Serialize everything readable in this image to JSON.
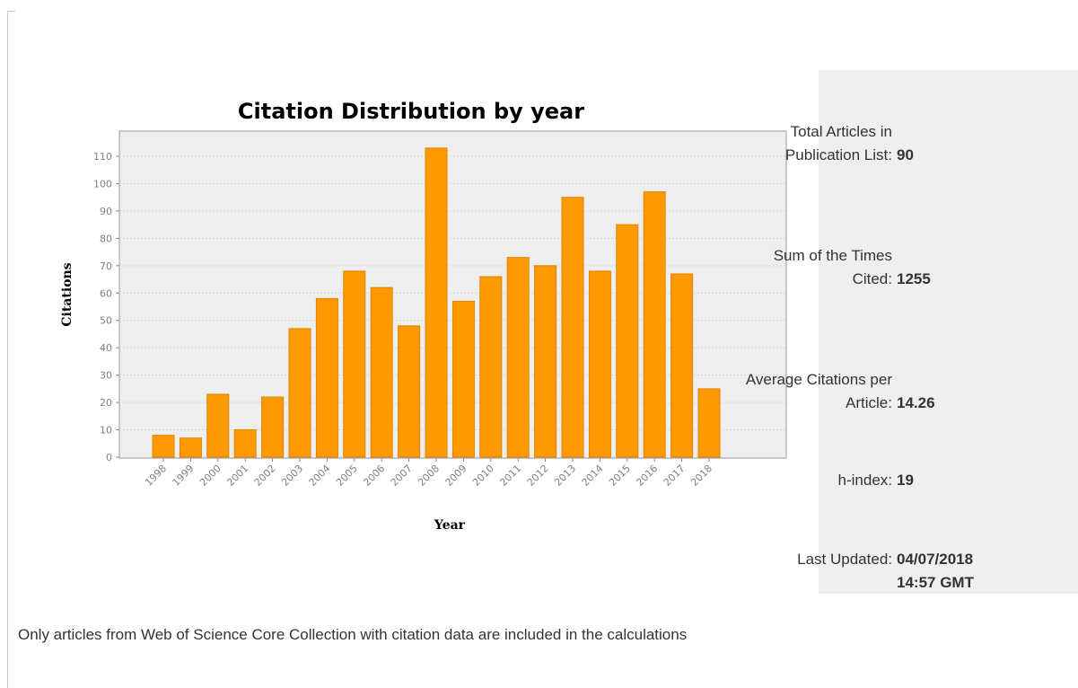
{
  "chart_data": {
    "type": "bar",
    "title": "Citation Distribution by year",
    "xlabel": "Year",
    "ylabel": "Citations",
    "categories": [
      "1998",
      "1999",
      "2000",
      "2001",
      "2002",
      "2003",
      "2004",
      "2005",
      "2006",
      "2007",
      "2008",
      "2009",
      "2010",
      "2011",
      "2012",
      "2013",
      "2014",
      "2015",
      "2016",
      "2017",
      "2018"
    ],
    "values": [
      8,
      7,
      23,
      10,
      22,
      47,
      58,
      68,
      62,
      48,
      113,
      57,
      66,
      73,
      70,
      95,
      68,
      85,
      97,
      67,
      25
    ],
    "ylim": [
      0,
      120
    ],
    "yticks": [
      0,
      10,
      20,
      30,
      40,
      50,
      60,
      70,
      80,
      90,
      100,
      110
    ],
    "grid": true,
    "bar_color": "#ff9900",
    "bar_stroke": "#e08300",
    "plot_background": "#eeeeee"
  },
  "stats": [
    {
      "label": "Total Articles in Publication List:",
      "value": "90"
    },
    {
      "label": "Sum of the Times Cited:",
      "value": "1255"
    },
    {
      "label": "Average Citations per Article:",
      "value": "14.26"
    },
    {
      "label": "h-index:",
      "value": "19"
    },
    {
      "label": "Last Updated:",
      "value": "04/07/2018\n14:57 GMT"
    }
  ],
  "footnote": "Only articles from Web of Science Core Collection with citation data are included in the calculations"
}
